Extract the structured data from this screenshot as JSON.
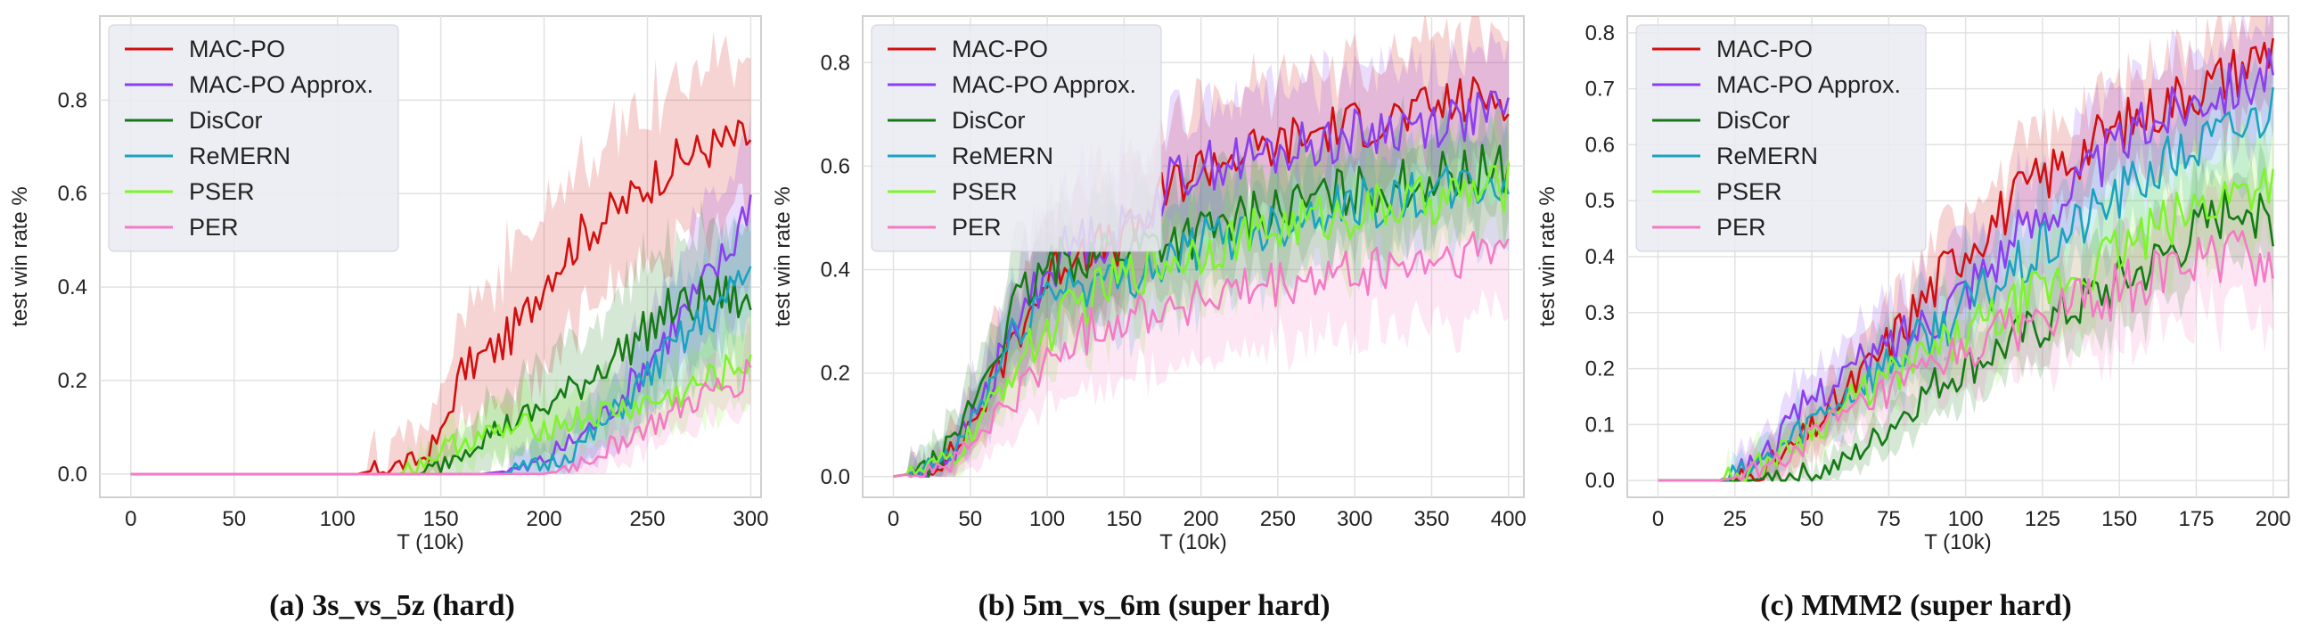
{
  "figure": {
    "legend_labels": [
      "MAC-PO",
      "MAC-PO Approx.",
      "DisCor",
      "ReMERN",
      "PSER",
      "PER"
    ],
    "legend_colors": [
      "#d10f0f",
      "#8a3ff0",
      "#157a15",
      "#1aa3c0",
      "#7ef52a",
      "#f57ac5"
    ]
  },
  "chart_data": [
    {
      "type": "line",
      "caption": "(a) 3s_vs_5z (hard)",
      "xlabel": "T (10k)",
      "ylabel": "test win rate %",
      "xlim": [
        -15,
        305
      ],
      "ylim": [
        -0.05,
        0.98
      ],
      "xticks": [
        0,
        50,
        100,
        150,
        200,
        250,
        300
      ],
      "yticks": [
        0.0,
        0.2,
        0.4,
        0.6,
        0.8
      ],
      "ytick_labels": [
        "0.0",
        "0.2",
        "0.4",
        "0.6",
        "0.8"
      ],
      "grid": true,
      "legend": "top-left",
      "series": [
        {
          "name": "MAC-PO",
          "color": "#d10f0f",
          "x": [
            0,
            110,
            120,
            130,
            140,
            150,
            160,
            170,
            180,
            190,
            200,
            210,
            220,
            230,
            240,
            250,
            260,
            270,
            280,
            290,
            300
          ],
          "y": [
            0,
            0,
            0.01,
            0.02,
            0.03,
            0.08,
            0.22,
            0.25,
            0.28,
            0.33,
            0.42,
            0.47,
            0.52,
            0.55,
            0.58,
            0.62,
            0.66,
            0.68,
            0.7,
            0.71,
            0.72
          ],
          "band": 0.17
        },
        {
          "name": "MAC-PO Approx.",
          "color": "#8a3ff0",
          "x": [
            0,
            170,
            180,
            190,
            200,
            210,
            220,
            230,
            240,
            250,
            260,
            270,
            280,
            290,
            300
          ],
          "y": [
            0,
            0,
            0.005,
            0.01,
            0.03,
            0.06,
            0.09,
            0.13,
            0.18,
            0.24,
            0.3,
            0.36,
            0.42,
            0.48,
            0.6
          ],
          "band": 0.14
        },
        {
          "name": "DisCor",
          "color": "#157a15",
          "x": [
            0,
            140,
            150,
            160,
            170,
            180,
            190,
            200,
            210,
            220,
            230,
            240,
            250,
            260,
            270,
            280,
            290,
            300
          ],
          "y": [
            0,
            0,
            0.02,
            0.05,
            0.08,
            0.1,
            0.12,
            0.14,
            0.17,
            0.2,
            0.24,
            0.27,
            0.31,
            0.35,
            0.36,
            0.38,
            0.38,
            0.35
          ],
          "band": 0.15
        },
        {
          "name": "ReMERN",
          "color": "#1aa3c0",
          "x": [
            0,
            180,
            190,
            200,
            210,
            220,
            230,
            240,
            250,
            260,
            270,
            280,
            290,
            300
          ],
          "y": [
            0,
            0,
            0.01,
            0.02,
            0.04,
            0.07,
            0.11,
            0.16,
            0.21,
            0.26,
            0.3,
            0.34,
            0.38,
            0.44
          ],
          "band": 0.12
        },
        {
          "name": "PSER",
          "color": "#7ef52a",
          "x": [
            0,
            130,
            140,
            150,
            160,
            170,
            180,
            190,
            200,
            210,
            220,
            230,
            240,
            250,
            260,
            270,
            280,
            290,
            300
          ],
          "y": [
            0,
            0,
            0.02,
            0.05,
            0.07,
            0.08,
            0.09,
            0.1,
            0.1,
            0.11,
            0.12,
            0.13,
            0.14,
            0.15,
            0.16,
            0.18,
            0.2,
            0.22,
            0.25
          ],
          "band": 0.12
        },
        {
          "name": "PER",
          "color": "#f57ac5",
          "x": [
            0,
            200,
            210,
            220,
            230,
            240,
            250,
            260,
            270,
            280,
            290,
            300
          ],
          "y": [
            0,
            0,
            0.01,
            0.03,
            0.05,
            0.08,
            0.1,
            0.12,
            0.15,
            0.17,
            0.19,
            0.22
          ],
          "band": 0.1
        }
      ]
    },
    {
      "type": "line",
      "caption": "(b) 5m_vs_6m (super hard)",
      "xlabel": "T (10k)",
      "ylabel": "test win rate %",
      "xlim": [
        -20,
        410
      ],
      "ylim": [
        -0.04,
        0.89
      ],
      "xticks": [
        0,
        50,
        100,
        150,
        200,
        250,
        300,
        350,
        400
      ],
      "yticks": [
        0.0,
        0.2,
        0.4,
        0.6,
        0.8
      ],
      "ytick_labels": [
        "0.0",
        "0.2",
        "0.4",
        "0.6",
        "0.8"
      ],
      "grid": true,
      "legend": "top-left",
      "series": [
        {
          "name": "MAC-PO",
          "color": "#d10f0f",
          "x": [
            0,
            20,
            40,
            60,
            80,
            100,
            120,
            140,
            160,
            180,
            200,
            220,
            240,
            260,
            280,
            300,
            320,
            340,
            360,
            380,
            400
          ],
          "y": [
            0,
            0.01,
            0.05,
            0.15,
            0.28,
            0.38,
            0.45,
            0.44,
            0.48,
            0.56,
            0.6,
            0.62,
            0.63,
            0.65,
            0.67,
            0.68,
            0.69,
            0.7,
            0.72,
            0.73,
            0.74
          ],
          "band": 0.12
        },
        {
          "name": "MAC-PO Approx.",
          "color": "#8a3ff0",
          "x": [
            0,
            20,
            40,
            60,
            80,
            100,
            120,
            140,
            160,
            180,
            200,
            220,
            240,
            260,
            280,
            300,
            320,
            340,
            360,
            380,
            400
          ],
          "y": [
            0,
            0.01,
            0.05,
            0.16,
            0.3,
            0.4,
            0.46,
            0.46,
            0.5,
            0.57,
            0.6,
            0.61,
            0.62,
            0.63,
            0.65,
            0.66,
            0.67,
            0.68,
            0.69,
            0.7,
            0.7
          ],
          "band": 0.12
        },
        {
          "name": "DisCor",
          "color": "#157a15",
          "x": [
            0,
            20,
            40,
            60,
            80,
            100,
            120,
            140,
            160,
            180,
            200,
            220,
            240,
            260,
            280,
            300,
            320,
            340,
            360,
            380,
            400
          ],
          "y": [
            0,
            0.01,
            0.07,
            0.2,
            0.33,
            0.4,
            0.43,
            0.44,
            0.45,
            0.46,
            0.47,
            0.49,
            0.51,
            0.52,
            0.54,
            0.55,
            0.56,
            0.57,
            0.58,
            0.59,
            0.6
          ],
          "band": 0.1
        },
        {
          "name": "ReMERN",
          "color": "#1aa3c0",
          "x": [
            0,
            20,
            40,
            60,
            80,
            100,
            120,
            140,
            160,
            180,
            200,
            220,
            240,
            260,
            280,
            300,
            320,
            340,
            360,
            380,
            400
          ],
          "y": [
            0,
            0.01,
            0.05,
            0.16,
            0.28,
            0.36,
            0.38,
            0.37,
            0.4,
            0.42,
            0.45,
            0.47,
            0.48,
            0.5,
            0.52,
            0.53,
            0.53,
            0.54,
            0.55,
            0.56,
            0.57
          ],
          "band": 0.1
        },
        {
          "name": "PSER",
          "color": "#7ef52a",
          "x": [
            0,
            20,
            40,
            60,
            80,
            100,
            120,
            140,
            160,
            180,
            200,
            220,
            240,
            260,
            280,
            300,
            320,
            340,
            360,
            380,
            400
          ],
          "y": [
            0,
            0.01,
            0.04,
            0.12,
            0.22,
            0.28,
            0.33,
            0.37,
            0.4,
            0.42,
            0.44,
            0.46,
            0.47,
            0.49,
            0.5,
            0.51,
            0.52,
            0.53,
            0.54,
            0.55,
            0.56
          ],
          "band": 0.1
        },
        {
          "name": "PER",
          "color": "#f57ac5",
          "x": [
            0,
            20,
            40,
            60,
            80,
            100,
            120,
            140,
            160,
            180,
            200,
            220,
            240,
            260,
            280,
            300,
            320,
            340,
            360,
            380,
            400
          ],
          "y": [
            0,
            0.01,
            0.03,
            0.09,
            0.16,
            0.22,
            0.27,
            0.3,
            0.32,
            0.33,
            0.34,
            0.35,
            0.36,
            0.37,
            0.38,
            0.39,
            0.4,
            0.41,
            0.42,
            0.43,
            0.44
          ],
          "band": 0.12
        }
      ]
    },
    {
      "type": "line",
      "caption": "(c) MMM2 (super hard)",
      "xlabel": "T (10k)",
      "ylabel": "test win rate %",
      "xlim": [
        -10,
        205
      ],
      "ylim": [
        -0.03,
        0.83
      ],
      "xticks": [
        0,
        25,
        50,
        75,
        100,
        125,
        150,
        175,
        200
      ],
      "yticks": [
        0.0,
        0.1,
        0.2,
        0.3,
        0.4,
        0.5,
        0.6,
        0.7,
        0.8
      ],
      "ytick_labels": [
        "0.0",
        "0.1",
        "0.2",
        "0.3",
        "0.4",
        "0.5",
        "0.6",
        "0.7",
        "0.8"
      ],
      "grid": true,
      "legend": "top-left",
      "series": [
        {
          "name": "MAC-PO",
          "color": "#d10f0f",
          "x": [
            0,
            20,
            30,
            40,
            50,
            60,
            70,
            80,
            90,
            100,
            110,
            120,
            130,
            140,
            150,
            160,
            170,
            180,
            190,
            200
          ],
          "y": [
            0,
            0,
            0.01,
            0.04,
            0.09,
            0.15,
            0.21,
            0.28,
            0.35,
            0.42,
            0.47,
            0.52,
            0.56,
            0.6,
            0.63,
            0.66,
            0.69,
            0.71,
            0.74,
            0.78
          ],
          "band": 0.08
        },
        {
          "name": "MAC-PO Approx.",
          "color": "#8a3ff0",
          "x": [
            0,
            20,
            30,
            40,
            50,
            60,
            70,
            80,
            90,
            100,
            110,
            120,
            130,
            140,
            150,
            160,
            170,
            180,
            190,
            200
          ],
          "y": [
            0,
            0,
            0.03,
            0.08,
            0.15,
            0.19,
            0.22,
            0.26,
            0.3,
            0.35,
            0.4,
            0.45,
            0.5,
            0.55,
            0.6,
            0.64,
            0.67,
            0.7,
            0.71,
            0.74
          ],
          "band": 0.09
        },
        {
          "name": "DisCor",
          "color": "#157a15",
          "x": [
            0,
            30,
            40,
            50,
            60,
            70,
            80,
            90,
            100,
            110,
            120,
            130,
            140,
            150,
            160,
            170,
            180,
            190,
            200
          ],
          "y": [
            0,
            0,
            0.01,
            0.01,
            0.03,
            0.07,
            0.12,
            0.17,
            0.2,
            0.23,
            0.26,
            0.29,
            0.32,
            0.35,
            0.38,
            0.42,
            0.46,
            0.5,
            0.46
          ],
          "band": 0.08
        },
        {
          "name": "ReMERN",
          "color": "#1aa3c0",
          "x": [
            0,
            20,
            30,
            40,
            50,
            60,
            70,
            80,
            90,
            100,
            110,
            120,
            130,
            140,
            150,
            160,
            170,
            180,
            190,
            200
          ],
          "y": [
            0,
            0,
            0.02,
            0.06,
            0.11,
            0.15,
            0.19,
            0.23,
            0.27,
            0.31,
            0.35,
            0.39,
            0.43,
            0.47,
            0.51,
            0.55,
            0.58,
            0.61,
            0.63,
            0.67
          ],
          "band": 0.09
        },
        {
          "name": "PSER",
          "color": "#7ef52a",
          "x": [
            0,
            20,
            30,
            40,
            50,
            60,
            70,
            80,
            90,
            100,
            110,
            120,
            130,
            140,
            150,
            160,
            170,
            180,
            190,
            200
          ],
          "y": [
            0,
            0,
            0.02,
            0.05,
            0.09,
            0.13,
            0.17,
            0.2,
            0.23,
            0.26,
            0.29,
            0.32,
            0.35,
            0.38,
            0.41,
            0.44,
            0.47,
            0.5,
            0.52,
            0.55
          ],
          "band": 0.09
        },
        {
          "name": "PER",
          "color": "#f57ac5",
          "x": [
            0,
            20,
            30,
            40,
            50,
            60,
            70,
            80,
            90,
            100,
            110,
            120,
            130,
            140,
            150,
            160,
            170,
            180,
            190,
            200
          ],
          "y": [
            0,
            0,
            0.01,
            0.04,
            0.08,
            0.11,
            0.14,
            0.17,
            0.2,
            0.23,
            0.26,
            0.28,
            0.3,
            0.32,
            0.34,
            0.36,
            0.38,
            0.4,
            0.41,
            0.38
          ],
          "band": 0.1
        }
      ]
    }
  ]
}
